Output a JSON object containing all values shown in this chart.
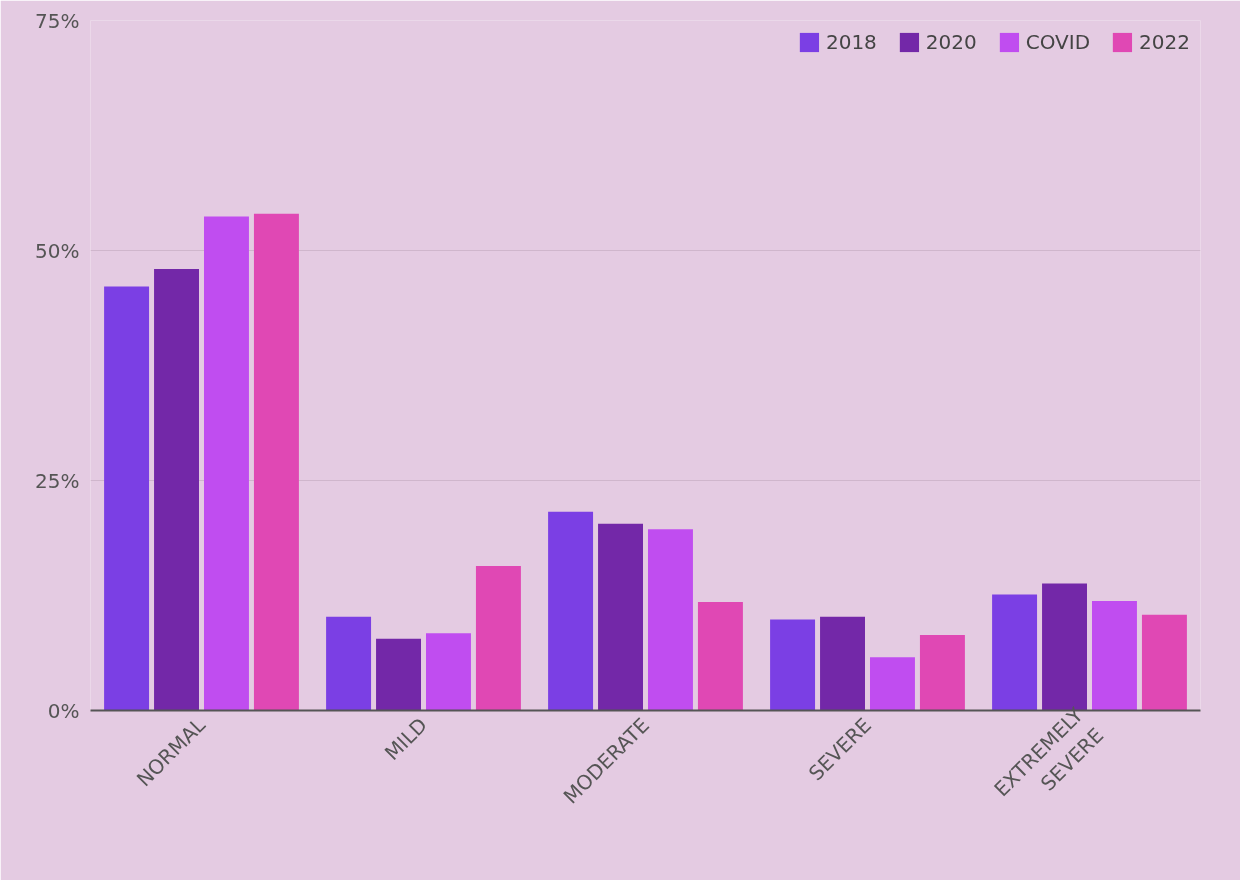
{
  "chart_data": {
    "type": "bar",
    "categories": [
      "NORMAL",
      "MILD",
      "MODERATE",
      "SEVERE",
      "EXTREMELY SEVERE"
    ],
    "series": [
      {
        "name": "2018",
        "color": "#7b3fe4",
        "values": [
          46.1,
          10.2,
          21.6,
          9.9,
          12.6
        ]
      },
      {
        "name": "2020",
        "color": "#7328a8",
        "values": [
          48.0,
          7.8,
          20.3,
          10.2,
          13.8
        ]
      },
      {
        "name": "COVID",
        "color": "#c04df0",
        "values": [
          53.7,
          8.4,
          19.7,
          5.8,
          11.9
        ]
      },
      {
        "name": "2022",
        "color": "#e048b4",
        "values": [
          54.0,
          15.7,
          11.8,
          8.2,
          10.4
        ]
      }
    ],
    "ylim": [
      0,
      75
    ],
    "yticks": [
      {
        "value": 0,
        "label": "0%"
      },
      {
        "value": 25,
        "label": "25%"
      },
      {
        "value": 50,
        "label": "50%"
      },
      {
        "value": 75,
        "label": "75%"
      }
    ],
    "grid": "y",
    "legend": "top right"
  }
}
